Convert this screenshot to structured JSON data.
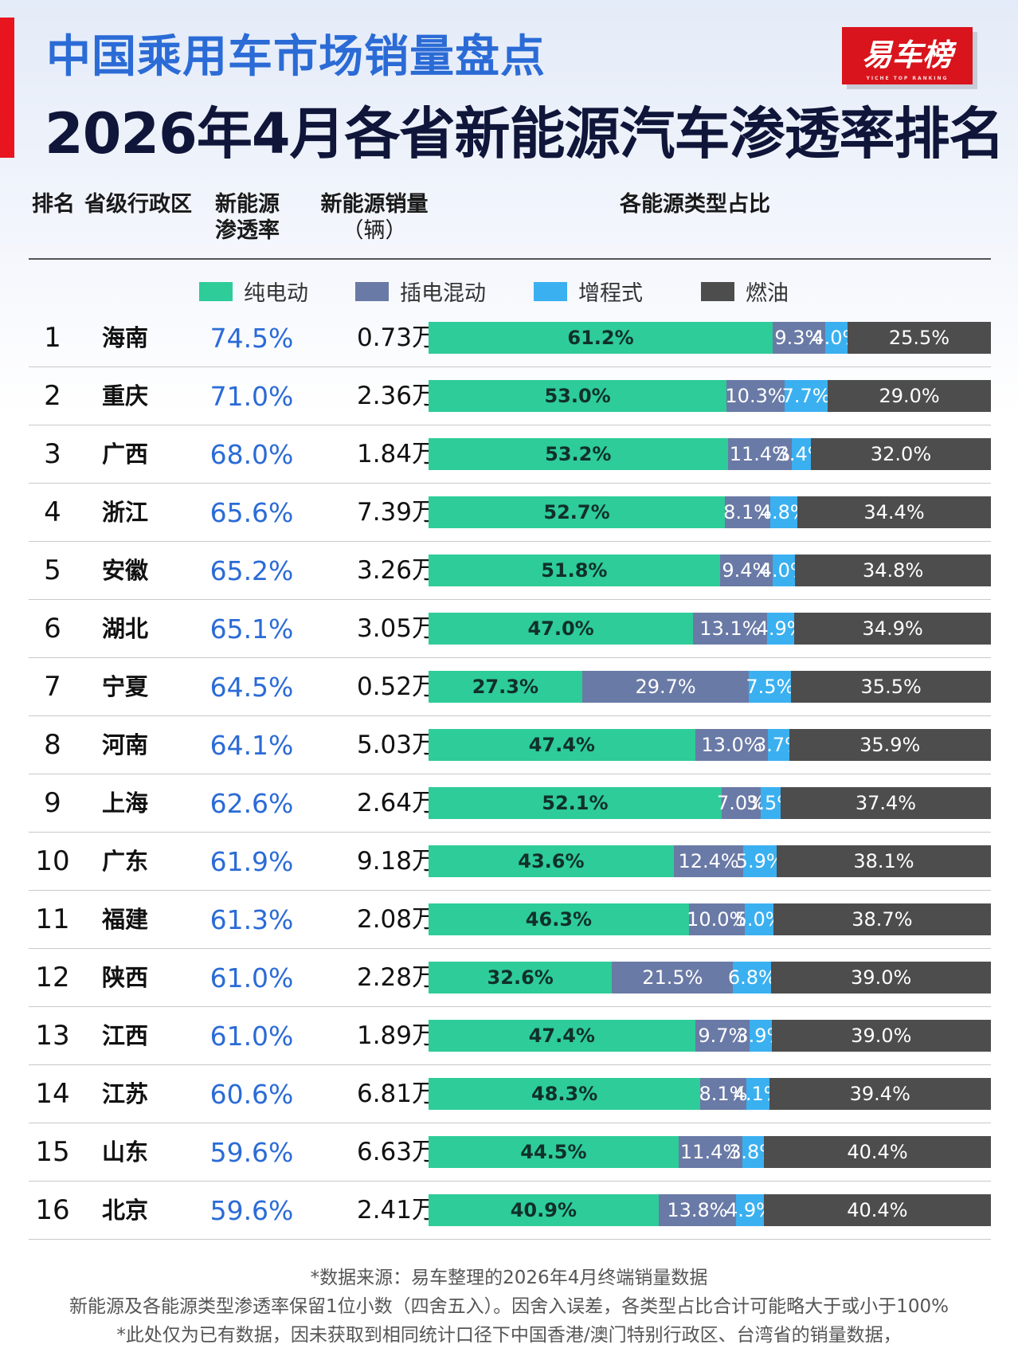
{
  "title": "中国乘用车市场销量盘点",
  "subtitle": "2026年4月各省新能源汽车渗透率排名",
  "logo": {
    "text": "易车榜",
    "sub": "YICHE TOP RANKING"
  },
  "colors": {
    "bev": "#2ecc98",
    "phev": "#6a7aa6",
    "erev": "#3ab0f0",
    "fuel": "#4d4d4d",
    "rate": "#2b6bd6",
    "accent": "#e8141e"
  },
  "headers": {
    "rank": "排名",
    "province": "省级行政区",
    "nev_rate_1": "新能源",
    "nev_rate_2": "渗透率",
    "nev_sales_1": "新能源销量",
    "nev_sales_2": "（辆）",
    "share": "各能源类型占比"
  },
  "chart_data": {
    "type": "bar",
    "stacked": true,
    "orientation": "horizontal",
    "legend": [
      "纯电动",
      "插电混动",
      "增程式",
      "燃油"
    ],
    "legend_placement": "top",
    "rows": [
      {
        "rank": "1",
        "province": "海南",
        "nev_rate": "74.5%",
        "nev_sales": "0.73万",
        "shares": [
          61.2,
          9.3,
          4.0,
          25.5
        ]
      },
      {
        "rank": "2",
        "province": "重庆",
        "nev_rate": "71.0%",
        "nev_sales": "2.36万",
        "shares": [
          53.0,
          10.3,
          7.7,
          29.0
        ]
      },
      {
        "rank": "3",
        "province": "广西",
        "nev_rate": "68.0%",
        "nev_sales": "1.84万",
        "shares": [
          53.2,
          11.4,
          3.4,
          32.0
        ]
      },
      {
        "rank": "4",
        "province": "浙江",
        "nev_rate": "65.6%",
        "nev_sales": "7.39万",
        "shares": [
          52.7,
          8.1,
          4.8,
          34.4
        ]
      },
      {
        "rank": "5",
        "province": "安徽",
        "nev_rate": "65.2%",
        "nev_sales": "3.26万",
        "shares": [
          51.8,
          9.4,
          4.0,
          34.8
        ]
      },
      {
        "rank": "6",
        "province": "湖北",
        "nev_rate": "65.1%",
        "nev_sales": "3.05万",
        "shares": [
          47.0,
          13.1,
          4.9,
          34.9
        ]
      },
      {
        "rank": "7",
        "province": "宁夏",
        "nev_rate": "64.5%",
        "nev_sales": "0.52万",
        "shares": [
          27.3,
          29.7,
          7.5,
          35.5
        ]
      },
      {
        "rank": "8",
        "province": "河南",
        "nev_rate": "64.1%",
        "nev_sales": "5.03万",
        "shares": [
          47.4,
          13.0,
          3.7,
          35.9
        ]
      },
      {
        "rank": "9",
        "province": "上海",
        "nev_rate": "62.6%",
        "nev_sales": "2.64万",
        "shares": [
          52.1,
          7.0,
          3.5,
          37.4
        ]
      },
      {
        "rank": "10",
        "province": "广东",
        "nev_rate": "61.9%",
        "nev_sales": "9.18万",
        "shares": [
          43.6,
          12.4,
          5.9,
          38.1
        ]
      },
      {
        "rank": "11",
        "province": "福建",
        "nev_rate": "61.3%",
        "nev_sales": "2.08万",
        "shares": [
          46.3,
          10.0,
          5.0,
          38.7
        ]
      },
      {
        "rank": "12",
        "province": "陕西",
        "nev_rate": "61.0%",
        "nev_sales": "2.28万",
        "shares": [
          32.6,
          21.5,
          6.8,
          39.0
        ]
      },
      {
        "rank": "13",
        "province": "江西",
        "nev_rate": "61.0%",
        "nev_sales": "1.89万",
        "shares": [
          47.4,
          9.7,
          3.9,
          39.0
        ]
      },
      {
        "rank": "14",
        "province": "江苏",
        "nev_rate": "60.6%",
        "nev_sales": "6.81万",
        "shares": [
          48.3,
          8.1,
          4.1,
          39.4
        ]
      },
      {
        "rank": "15",
        "province": "山东",
        "nev_rate": "59.6%",
        "nev_sales": "6.63万",
        "shares": [
          44.5,
          11.4,
          3.8,
          40.4
        ]
      },
      {
        "rank": "16",
        "province": "北京",
        "nev_rate": "59.6%",
        "nev_sales": "2.41万",
        "shares": [
          40.9,
          13.8,
          4.9,
          40.4
        ]
      }
    ]
  },
  "footer": {
    "line1": "*数据来源：易车整理的2026年4月终端销量数据",
    "line2": "新能源及各能源类型渗透率保留1位小数（四舍五入）。因舍入误差，各类型占比合计可能略大于或小于100%",
    "line3": "*此处仅为已有数据，因未获取到相同统计口径下中国香港/澳门特别行政区、台湾省的销量数据，"
  }
}
